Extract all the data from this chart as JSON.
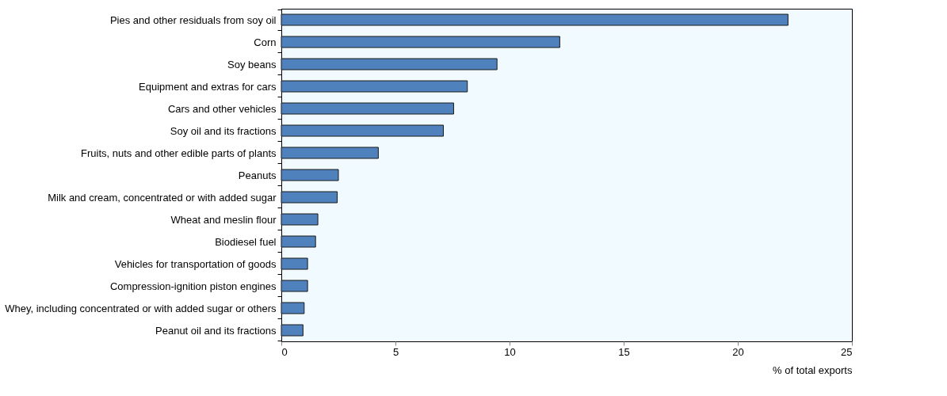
{
  "chart_data": {
    "type": "bar",
    "orientation": "horizontal",
    "xlabel": "% of total exports",
    "categories": [
      "Pies and other residuals from soy oil",
      "Corn",
      "Soy beans",
      "Equipment and extras for cars",
      "Cars and other vehicles",
      "Soy oil and its fractions",
      "Fruits, nuts and other edible parts of plants",
      "Peanuts",
      "Milk and cream, concentrated or with added sugar",
      "Wheat and meslin flour",
      "Biodiesel fuel",
      "Vehicles for transportation of goods",
      "Compression-ignition piston engines",
      "Whey, including concentrated or with added sugar or others",
      "Peanut oil and its fractions"
    ],
    "values": [
      22.2,
      12.2,
      9.45,
      8.15,
      7.55,
      7.1,
      4.25,
      2.5,
      2.45,
      1.6,
      1.5,
      1.15,
      1.15,
      1.0,
      0.95
    ],
    "color": "#4f81bd",
    "xlim": [
      0,
      25
    ],
    "xticks": [
      0,
      5,
      10,
      15,
      20,
      25
    ],
    "grid": false
  }
}
